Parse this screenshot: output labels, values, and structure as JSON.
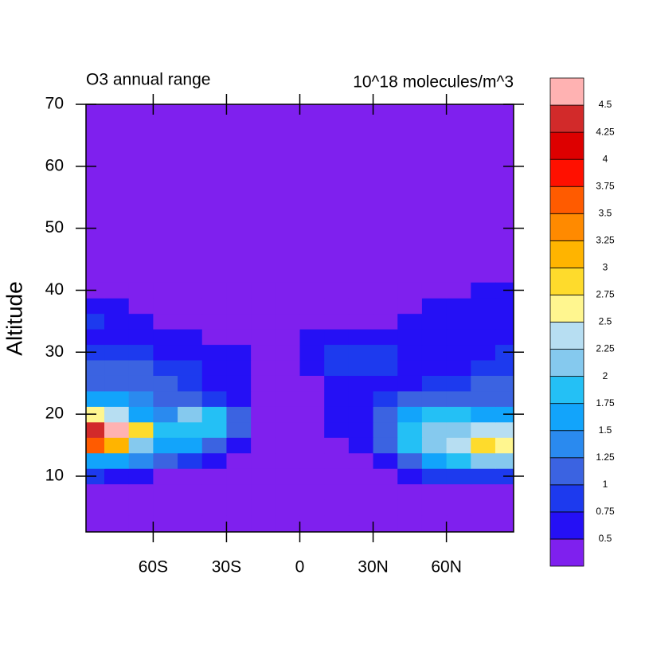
{
  "chart_data": {
    "type": "contour",
    "title": "O3 annual range",
    "units": "10^18 molecules/m^3",
    "y_label": "Altitude",
    "xlim": [
      -87.5,
      87.5
    ],
    "ylim": [
      1,
      70
    ],
    "xticks": [
      {
        "value": -60,
        "label": "60S"
      },
      {
        "value": -30,
        "label": "30S"
      },
      0,
      {
        "value": 30,
        "label": "30N"
      },
      {
        "value": 60,
        "label": "60N"
      }
    ],
    "yticks": [
      10,
      20,
      30,
      40,
      50,
      60,
      70
    ],
    "x": [
      -85,
      -75,
      -65,
      -55,
      -45,
      -35,
      -25,
      -15,
      -5,
      5,
      15,
      25,
      35,
      45,
      55,
      65,
      75,
      85
    ],
    "y": [
      2.5,
      5,
      7.5,
      10,
      12.5,
      15,
      17.5,
      20,
      22.5,
      25,
      27.5,
      30,
      32.5,
      35,
      37.5,
      40
    ],
    "z": [
      [
        0.2,
        0.2,
        0.2,
        0.2,
        0.2,
        0.2,
        0.2,
        0.2,
        0.2,
        0.2,
        0.2,
        0.2,
        0.2,
        0.2,
        0.2,
        0.2,
        0.2,
        0.2
      ],
      [
        0.2,
        0.2,
        0.2,
        0.2,
        0.2,
        0.2,
        0.2,
        0.2,
        0.2,
        0.2,
        0.2,
        0.2,
        0.2,
        0.2,
        0.2,
        0.2,
        0.2,
        0.2
      ],
      [
        0.2,
        0.2,
        0.2,
        0.2,
        0.2,
        0.2,
        0.2,
        0.2,
        0.2,
        0.2,
        0.2,
        0.2,
        0.2,
        0.2,
        0.2,
        0.2,
        0.2,
        0.2
      ],
      [
        0.9,
        0.6,
        0.6,
        0.3,
        0.2,
        0.2,
        0.2,
        0.2,
        0.2,
        0.2,
        0.2,
        0.2,
        0.3,
        0.6,
        0.8,
        0.9,
        0.9,
        0.9
      ],
      [
        1.6,
        1.5,
        1.3,
        1.1,
        0.9,
        0.6,
        0.2,
        0.2,
        0.2,
        0.2,
        0.2,
        0.2,
        0.7,
        1.2,
        1.6,
        1.8,
        2.0,
        2.0
      ],
      [
        3.5,
        3.2,
        2.0,
        1.6,
        1.5,
        1.1,
        0.6,
        0.2,
        0.2,
        0.2,
        0.2,
        0.5,
        1.1,
        1.9,
        2.2,
        2.4,
        2.8,
        2.7
      ],
      [
        4.4,
        4.6,
        2.8,
        1.8,
        1.9,
        1.8,
        1.0,
        0.3,
        0.2,
        0.4,
        0.6,
        0.6,
        1.2,
        1.9,
        2.1,
        2.2,
        2.4,
        2.3
      ],
      [
        2.5,
        2.3,
        1.6,
        1.4,
        2.0,
        1.9,
        1.1,
        0.4,
        0.2,
        0.4,
        0.6,
        0.6,
        1.0,
        1.7,
        1.9,
        1.8,
        1.6,
        1.5
      ],
      [
        1.5,
        1.5,
        1.3,
        1.1,
        1.1,
        0.9,
        0.6,
        0.2,
        0.2,
        0.2,
        0.5,
        0.6,
        0.9,
        1.1,
        1.2,
        1.2,
        1.2,
        1.2
      ],
      [
        1.2,
        1.2,
        1.1,
        1.0,
        0.8,
        0.6,
        0.5,
        0.3,
        0.2,
        0.2,
        0.6,
        0.7,
        0.7,
        0.7,
        0.8,
        0.9,
        1.0,
        1.1
      ],
      [
        1.1,
        1.1,
        1.0,
        0.9,
        0.8,
        0.6,
        0.6,
        0.2,
        0.2,
        0.5,
        0.8,
        0.8,
        0.8,
        0.7,
        0.7,
        0.7,
        0.8,
        0.9
      ],
      [
        0.8,
        0.8,
        0.8,
        0.7,
        0.7,
        0.6,
        0.5,
        0.2,
        0.2,
        0.6,
        0.8,
        0.9,
        0.8,
        0.7,
        0.6,
        0.7,
        0.7,
        0.8
      ],
      [
        0.7,
        0.7,
        0.6,
        0.6,
        0.5,
        0.3,
        0.2,
        0.2,
        0.2,
        0.5,
        0.7,
        0.7,
        0.6,
        0.6,
        0.6,
        0.6,
        0.7,
        0.7
      ],
      [
        0.8,
        0.6,
        0.6,
        0.3,
        0.2,
        0.2,
        0.2,
        0.2,
        0.2,
        0.2,
        0.3,
        0.3,
        0.3,
        0.5,
        0.6,
        0.6,
        0.6,
        0.6
      ],
      [
        0.6,
        0.6,
        0.3,
        0.2,
        0.2,
        0.2,
        0.2,
        0.2,
        0.2,
        0.2,
        0.2,
        0.2,
        0.2,
        0.2,
        0.5,
        0.6,
        0.6,
        0.6
      ],
      [
        0.3,
        0.2,
        0.2,
        0.2,
        0.2,
        0.2,
        0.2,
        0.2,
        0.2,
        0.2,
        0.2,
        0.2,
        0.2,
        0.2,
        0.2,
        0.2,
        0.5,
        0.5
      ]
    ],
    "levels": [
      0.5,
      0.75,
      1,
      1.25,
      1.5,
      1.75,
      2,
      2.25,
      2.5,
      2.75,
      3,
      3.25,
      3.5,
      3.75,
      4,
      4.25,
      4.5
    ],
    "colors": [
      "#7f20ee",
      "#2510f5",
      "#1d3aee",
      "#3b63e1",
      "#2a8aef",
      "#12a4fb",
      "#24c0f5",
      "#85c9ee",
      "#b7def2",
      "#fff68f",
      "#fedb2c",
      "#ffb400",
      "#ff8a00",
      "#ff5b00",
      "#ff1000",
      "#dd0000",
      "#d22a2a",
      "#ffb2b2"
    ]
  }
}
